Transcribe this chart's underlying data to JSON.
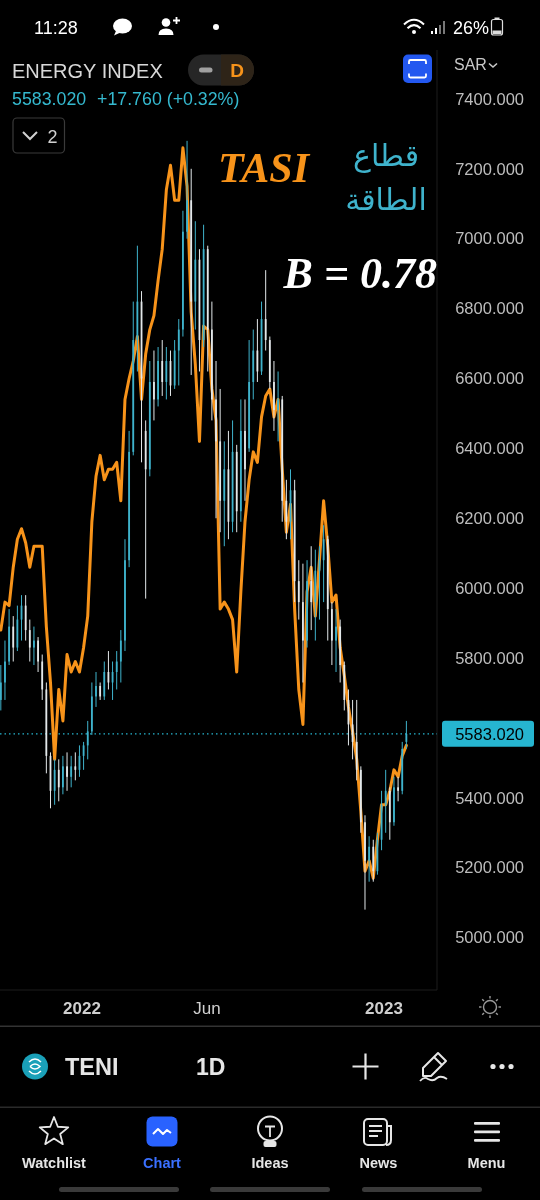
{
  "chart_data": {
    "type": "candlestick",
    "title": "ENERGY INDEX",
    "annotations": [
      "11:28",
      "26%",
      "D",
      "5583.020",
      "+17.760 (+0.32%)",
      "2",
      "SAR",
      "B = 0.78",
      "TENI",
      "1D",
      "Watchlist",
      "Chart",
      "Ideas",
      "News",
      "Menu"
    ],
    "x": [
      "2021-09-25",
      "2021-09-30",
      "2021-10-05",
      "2021-10-10",
      "2021-10-15",
      "2021-10-20",
      "2021-10-25",
      "2021-10-30",
      "2021-11-04",
      "2021-11-09",
      "2021-11-14",
      "2021-11-19",
      "2021-11-24",
      "2021-11-29",
      "2021-12-04",
      "2021-12-09",
      "2021-12-14",
      "2021-12-19",
      "2021-12-24",
      "2021-12-29",
      "2022-01-03",
      "2022-01-08",
      "2022-01-13",
      "2022-01-18",
      "2022-01-23",
      "2022-01-28",
      "2022-02-02",
      "2022-02-07",
      "2022-02-12",
      "2022-02-17",
      "2022-02-22",
      "2022-02-27",
      "2022-03-04",
      "2022-03-09",
      "2022-03-14",
      "2022-03-19",
      "2022-03-24",
      "2022-03-29",
      "2022-04-03",
      "2022-04-08",
      "2022-04-13",
      "2022-04-18",
      "2022-04-23",
      "2022-04-28",
      "2022-05-03",
      "2022-05-08",
      "2022-05-13",
      "2022-05-18",
      "2022-05-23",
      "2022-05-28",
      "2022-06-02",
      "2022-06-07",
      "2022-06-12",
      "2022-06-17",
      "2022-06-22",
      "2022-06-27",
      "2022-07-02",
      "2022-07-07",
      "2022-07-12",
      "2022-07-17",
      "2022-07-22",
      "2022-07-27",
      "2022-08-01",
      "2022-08-06",
      "2022-08-11",
      "2022-08-16",
      "2022-08-21",
      "2022-08-26",
      "2022-08-31",
      "2022-09-05",
      "2022-09-10",
      "2022-09-15",
      "2022-09-20",
      "2022-09-25",
      "2022-09-30",
      "2022-10-05",
      "2022-10-10",
      "2022-10-15",
      "2022-10-20",
      "2022-10-25",
      "2022-10-30",
      "2022-11-04",
      "2022-11-09",
      "2022-11-14",
      "2022-11-19",
      "2022-11-24",
      "2022-11-29",
      "2022-12-04",
      "2022-12-09",
      "2022-12-14",
      "2022-12-19",
      "2022-12-24",
      "2022-12-29",
      "2023-01-03",
      "2023-01-08",
      "2023-01-13",
      "2023-01-18",
      "2023-01-23",
      "2023-01-28"
    ],
    "series": [
      {
        "name": "قطاع الطاقة",
        "type": "candlestick",
        "color": "#3fb3cc",
        "ohlc": [
          [
            5680,
            5780,
            5650,
            5730
          ],
          [
            5730,
            5850,
            5680,
            5790
          ],
          [
            5790,
            5940,
            5780,
            5890
          ],
          [
            5890,
            5920,
            5790,
            5830
          ],
          [
            5830,
            5950,
            5820,
            5910
          ],
          [
            5910,
            5980,
            5850,
            5950
          ],
          [
            5950,
            5980,
            5850,
            5880
          ],
          [
            5880,
            5910,
            5790,
            5830
          ],
          [
            5830,
            5890,
            5780,
            5850
          ],
          [
            5850,
            5860,
            5760,
            5790
          ],
          [
            5790,
            5810,
            5680,
            5710
          ],
          [
            5710,
            5730,
            5470,
            5520
          ],
          [
            5520,
            5530,
            5370,
            5420
          ],
          [
            5420,
            5510,
            5380,
            5480
          ],
          [
            5480,
            5510,
            5390,
            5430
          ],
          [
            5430,
            5520,
            5410,
            5490
          ],
          [
            5490,
            5530,
            5420,
            5460
          ],
          [
            5460,
            5520,
            5430,
            5490
          ],
          [
            5490,
            5530,
            5450,
            5480
          ],
          [
            5480,
            5550,
            5460,
            5520
          ],
          [
            5520,
            5560,
            5480,
            5550
          ],
          [
            5550,
            5620,
            5510,
            5590
          ],
          [
            5590,
            5730,
            5580,
            5690
          ],
          [
            5690,
            5760,
            5660,
            5720
          ],
          [
            5720,
            5730,
            5680,
            5690
          ],
          [
            5690,
            5790,
            5680,
            5760
          ],
          [
            5760,
            5820,
            5710,
            5730
          ],
          [
            5730,
            5790,
            5680,
            5760
          ],
          [
            5760,
            5820,
            5710,
            5790
          ],
          [
            5790,
            5880,
            5730,
            5850
          ],
          [
            5850,
            6140,
            5820,
            6080
          ],
          [
            6080,
            6450,
            6060,
            6390
          ],
          [
            6390,
            6820,
            6380,
            6710
          ],
          [
            6710,
            6980,
            6620,
            6820
          ],
          [
            6820,
            6850,
            6360,
            6600
          ],
          [
            6450,
            6480,
            5970,
            6340
          ],
          [
            6340,
            6650,
            6320,
            6590
          ],
          [
            6590,
            6680,
            6480,
            6540
          ],
          [
            6540,
            6690,
            6520,
            6650
          ],
          [
            6650,
            6710,
            6550,
            6590
          ],
          [
            6590,
            6690,
            6540,
            6650
          ],
          [
            6650,
            6680,
            6550,
            6580
          ],
          [
            6580,
            6710,
            6570,
            6680
          ],
          [
            6680,
            6770,
            6580,
            6740
          ],
          [
            6740,
            7080,
            6720,
            7020
          ],
          [
            7020,
            7280,
            7000,
            7110
          ],
          [
            7110,
            7200,
            6610,
            6820
          ],
          [
            6820,
            7050,
            6740,
            6940
          ],
          [
            6940,
            6970,
            6620,
            6710
          ],
          [
            6710,
            7040,
            6690,
            6970
          ],
          [
            6970,
            6980,
            6620,
            6740
          ],
          [
            6740,
            6820,
            6480,
            6540
          ],
          [
            6540,
            6650,
            6200,
            6420
          ],
          [
            6420,
            6570,
            6160,
            6250
          ],
          [
            6250,
            6420,
            6120,
            6340
          ],
          [
            6340,
            6450,
            6140,
            6190
          ],
          [
            6190,
            6480,
            6160,
            6390
          ],
          [
            6390,
            6410,
            6160,
            6220
          ],
          [
            6220,
            6540,
            6190,
            6450
          ],
          [
            6450,
            6540,
            6250,
            6340
          ],
          [
            6400,
            6710,
            6390,
            6590
          ],
          [
            6590,
            6740,
            6540,
            6680
          ],
          [
            6680,
            6770,
            6590,
            6620
          ],
          [
            6620,
            6820,
            6610,
            6770
          ],
          [
            6770,
            6910,
            6680,
            6710
          ],
          [
            6710,
            6720,
            6570,
            6590
          ],
          [
            6590,
            6650,
            6450,
            6510
          ],
          [
            6510,
            6620,
            6420,
            6540
          ],
          [
            6540,
            6550,
            6190,
            6250
          ],
          [
            6250,
            6310,
            6140,
            6190
          ],
          [
            6190,
            6340,
            6140,
            6280
          ],
          [
            6280,
            6310,
            5960,
            6020
          ],
          [
            6020,
            6080,
            5910,
            5960
          ],
          [
            5960,
            6070,
            5730,
            5850
          ],
          [
            5850,
            6080,
            5830,
            6020
          ],
          [
            6020,
            6120,
            5880,
            5960
          ],
          [
            5960,
            6110,
            5850,
            6050
          ],
          [
            6050,
            6120,
            5910,
            6080
          ],
          [
            6080,
            6180,
            5960,
            6140
          ],
          [
            6140,
            6150,
            5850,
            5940
          ],
          [
            5940,
            5960,
            5780,
            5850
          ],
          [
            5850,
            5940,
            5760,
            5890
          ],
          [
            5890,
            5910,
            5730,
            5780
          ],
          [
            5780,
            5790,
            5650,
            5680
          ],
          [
            5680,
            5710,
            5550,
            5610
          ],
          [
            5610,
            5680,
            5510,
            5560
          ],
          [
            5560,
            5680,
            5450,
            5480
          ],
          [
            5480,
            5490,
            5300,
            5330
          ],
          [
            5330,
            5350,
            5080,
            5220
          ],
          [
            5220,
            5290,
            5160,
            5260
          ],
          [
            5260,
            5280,
            5160,
            5190
          ],
          [
            5190,
            5300,
            5180,
            5280
          ],
          [
            5280,
            5420,
            5250,
            5380
          ],
          [
            5380,
            5480,
            5300,
            5420
          ],
          [
            5420,
            5430,
            5280,
            5330
          ],
          [
            5330,
            5460,
            5320,
            5430
          ],
          [
            5430,
            5460,
            5390,
            5420
          ],
          [
            5420,
            5560,
            5410,
            5540
          ],
          [
            5560,
            5620,
            5540,
            5583.02
          ]
        ],
        "colors": [
          "#3fb3cc",
          "#3fb3cc",
          "#3fb3cc",
          "#e3e8ea",
          "#3fb3cc",
          "#3fb3cc",
          "#e3e8ea",
          "#e3e8ea",
          "#3fb3cc",
          "#e3e8ea",
          "#e3e8ea",
          "#e3e8ea",
          "#e3e8ea",
          "#3fb3cc",
          "#e3e8ea",
          "#3fb3cc",
          "#e3e8ea",
          "#3fb3cc",
          "#e3e8ea",
          "#3fb3cc",
          "#3fb3cc",
          "#3fb3cc",
          "#3fb3cc",
          "#3fb3cc",
          "#e3e8ea",
          "#3fb3cc",
          "#e3e8ea",
          "#3fb3cc",
          "#3fb3cc",
          "#3fb3cc",
          "#3fb3cc",
          "#3fb3cc",
          "#3fb3cc",
          "#3fb3cc",
          "#e3e8ea",
          "#e3e8ea",
          "#3fb3cc",
          "#e3e8ea",
          "#3fb3cc",
          "#e3e8ea",
          "#3fb3cc",
          "#e3e8ea",
          "#3fb3cc",
          "#3fb3cc",
          "#3fb3cc",
          "#3fb3cc",
          "#e3e8ea",
          "#3fb3cc",
          "#e3e8ea",
          "#3fb3cc",
          "#e3e8ea",
          "#e3e8ea",
          "#e3e8ea",
          "#e3e8ea",
          "#3fb3cc",
          "#e3e8ea",
          "#3fb3cc",
          "#e3e8ea",
          "#3fb3cc",
          "#e3e8ea",
          "#3fb3cc",
          "#3fb3cc",
          "#e3e8ea",
          "#3fb3cc",
          "#e3e8ea",
          "#e3e8ea",
          "#e3e8ea",
          "#3fb3cc",
          "#e3e8ea",
          "#e3e8ea",
          "#3fb3cc",
          "#e3e8ea",
          "#e3e8ea",
          "#e3e8ea",
          "#3fb3cc",
          "#e3e8ea",
          "#3fb3cc",
          "#3fb3cc",
          "#3fb3cc",
          "#e3e8ea",
          "#e3e8ea",
          "#3fb3cc",
          "#e3e8ea",
          "#e3e8ea",
          "#e3e8ea",
          "#e3e8ea",
          "#e3e8ea",
          "#e3e8ea",
          "#e3e8ea",
          "#3fb3cc",
          "#e3e8ea",
          "#3fb3cc",
          "#3fb3cc",
          "#3fb3cc",
          "#e3e8ea",
          "#3fb3cc",
          "#e3e8ea",
          "#3fb3cc",
          "#3fb3cc"
        ]
      },
      {
        "name": "TASI",
        "type": "line",
        "color": "#f7931a",
        "values": [
          5880,
          5960,
          5950,
          6060,
          6140,
          6170,
          6130,
          6060,
          6120,
          6120,
          6120,
          5890,
          5730,
          5510,
          5710,
          5620,
          5810,
          5760,
          5790,
          5760,
          5830,
          5920,
          6190,
          6320,
          6380,
          6310,
          6340,
          6340,
          6360,
          6250,
          6540,
          6600,
          6650,
          6720,
          6540,
          6670,
          6740,
          6780,
          6880,
          6970,
          7140,
          7210,
          7110,
          7110,
          7260,
          7150,
          6790,
          6640,
          6420,
          6750,
          6740,
          6570,
          6480,
          5940,
          5960,
          5940,
          5910,
          5760,
          5990,
          6190,
          6310,
          6390,
          6360,
          6490,
          6550,
          6570,
          6490,
          6540,
          6340,
          6160,
          6240,
          5940,
          5710,
          5610,
          5990,
          6060,
          5920,
          6080,
          6250,
          6120,
          5960,
          5980,
          5830,
          5750,
          5660,
          5590,
          5510,
          5360,
          5190,
          5220,
          5170,
          5280,
          5380,
          5380,
          5420,
          5480,
          5460,
          5520,
          5550
        ]
      }
    ],
    "xlim": [
      "2021-09-24",
      "2023-03-06"
    ],
    "xticks": [
      {
        "value": "2022-01-01",
        "label": "2022"
      },
      {
        "value": "2022-06-01",
        "label": "Jun"
      },
      {
        "value": "2023-01-01",
        "label": "2023"
      }
    ],
    "ylim": [
      4850,
      7540
    ],
    "yticks": [
      {
        "value": 5000,
        "label": "5000.000"
      },
      {
        "value": 5200,
        "label": "5200.000"
      },
      {
        "value": 5400,
        "label": "5400.000"
      },
      {
        "value": 5800,
        "label": "5800.000"
      },
      {
        "value": 6000,
        "label": "6000.000"
      },
      {
        "value": 6200,
        "label": "6200.000"
      },
      {
        "value": 6400,
        "label": "6400.000"
      },
      {
        "value": 6600,
        "label": "6600.000"
      },
      {
        "value": 6800,
        "label": "6800.000"
      },
      {
        "value": 7000,
        "label": "7000.000"
      },
      {
        "value": 7200,
        "label": "7200.000"
      },
      {
        "value": 7400,
        "label": "7400.000"
      }
    ],
    "ref_lines": [
      {
        "axis": "y",
        "value": 5583.02,
        "label": "5583.020",
        "color": "#26b5d0",
        "line_style": "dotted"
      }
    ]
  }
}
